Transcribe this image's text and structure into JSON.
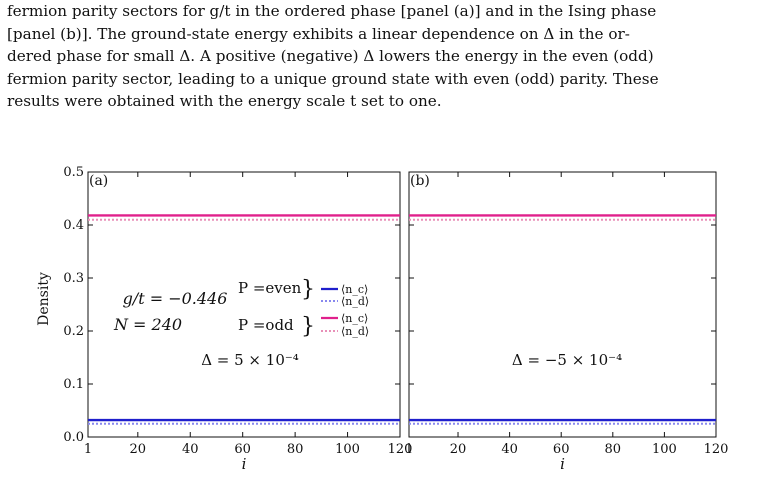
{
  "caption": {
    "lines": [
      "fermion parity sectors for g/t in the ordered phase [panel (a)] and in the Ising phase",
      "[panel (b)]. The ground-state energy exhibits a linear dependence on Δ in the or-",
      "dered phase for small Δ. A positive (negative) Δ lowers the energy in the even (odd)",
      "fermion parity sector, leading to a unique ground state with even (odd) parity. These",
      "results were obtained with the energy scale t set to one."
    ]
  },
  "figure": {
    "ylabel": "Density",
    "panels": [
      {
        "label": "(a)",
        "annotations": {
          "coupling": "g/t = −0.446",
          "size": "N = 240",
          "delta": "Δ = 5 × 10⁻⁴",
          "parity_even": "P =even",
          "parity_odd": "P =odd",
          "brace": "}"
        }
      },
      {
        "label": "(b)",
        "annotations": {
          "delta": "Δ = −5 × 10⁻⁴"
        }
      }
    ],
    "legend": [
      {
        "label": "⟨n_c⟩",
        "color": "#1f1fcc",
        "style": "solid"
      },
      {
        "label": "⟨n_d⟩",
        "color": "#8888ee",
        "style": "dotted"
      },
      {
        "label": "⟨n_c⟩",
        "color": "#e0208c",
        "style": "solid"
      },
      {
        "label": "⟨n_d⟩",
        "color": "#e890b8",
        "style": "dotted"
      }
    ]
  },
  "chart_data": {
    "type": "line",
    "xlabel": "i",
    "ylabel": "Density",
    "xlim": [
      1,
      120
    ],
    "ylim": [
      0.0,
      0.5
    ],
    "x_ticks": [
      1,
      20,
      40,
      60,
      80,
      100,
      120
    ],
    "y_ticks": [
      "0.0",
      "0.1",
      "0.2",
      "0.3",
      "0.4",
      "0.5"
    ],
    "panels": [
      {
        "label": "(a)",
        "series": [
          {
            "name": "⟨n_c⟩",
            "parity": "even",
            "color": "#1f1fcc",
            "style": "solid",
            "x": [
              1,
              120
            ],
            "y": [
              0.032,
              0.032
            ]
          },
          {
            "name": "⟨n_d⟩",
            "parity": "even",
            "color": "#8888ee",
            "style": "dotted",
            "x": [
              1,
              120
            ],
            "y": [
              0.025,
              0.025
            ]
          },
          {
            "name": "⟨n_c⟩",
            "parity": "odd",
            "color": "#e0208c",
            "style": "solid",
            "x": [
              1,
              120
            ],
            "y": [
              0.418,
              0.418
            ]
          },
          {
            "name": "⟨n_d⟩",
            "parity": "odd",
            "color": "#e890b8",
            "style": "dotted",
            "x": [
              1,
              120
            ],
            "y": [
              0.41,
              0.41
            ]
          }
        ]
      },
      {
        "label": "(b)",
        "series": [
          {
            "name": "⟨n_c⟩",
            "parity": "even",
            "color": "#1f1fcc",
            "style": "solid",
            "x": [
              1,
              120
            ],
            "y": [
              0.032,
              0.032
            ]
          },
          {
            "name": "⟨n_d⟩",
            "parity": "even",
            "color": "#8888ee",
            "style": "dotted",
            "x": [
              1,
              120
            ],
            "y": [
              0.025,
              0.025
            ]
          },
          {
            "name": "⟨n_c⟩",
            "parity": "odd",
            "color": "#e0208c",
            "style": "solid",
            "x": [
              1,
              120
            ],
            "y": [
              0.418,
              0.418
            ]
          },
          {
            "name": "⟨n_d⟩",
            "parity": "odd",
            "color": "#e890b8",
            "style": "dotted",
            "x": [
              1,
              120
            ],
            "y": [
              0.41,
              0.41
            ]
          }
        ]
      }
    ]
  }
}
